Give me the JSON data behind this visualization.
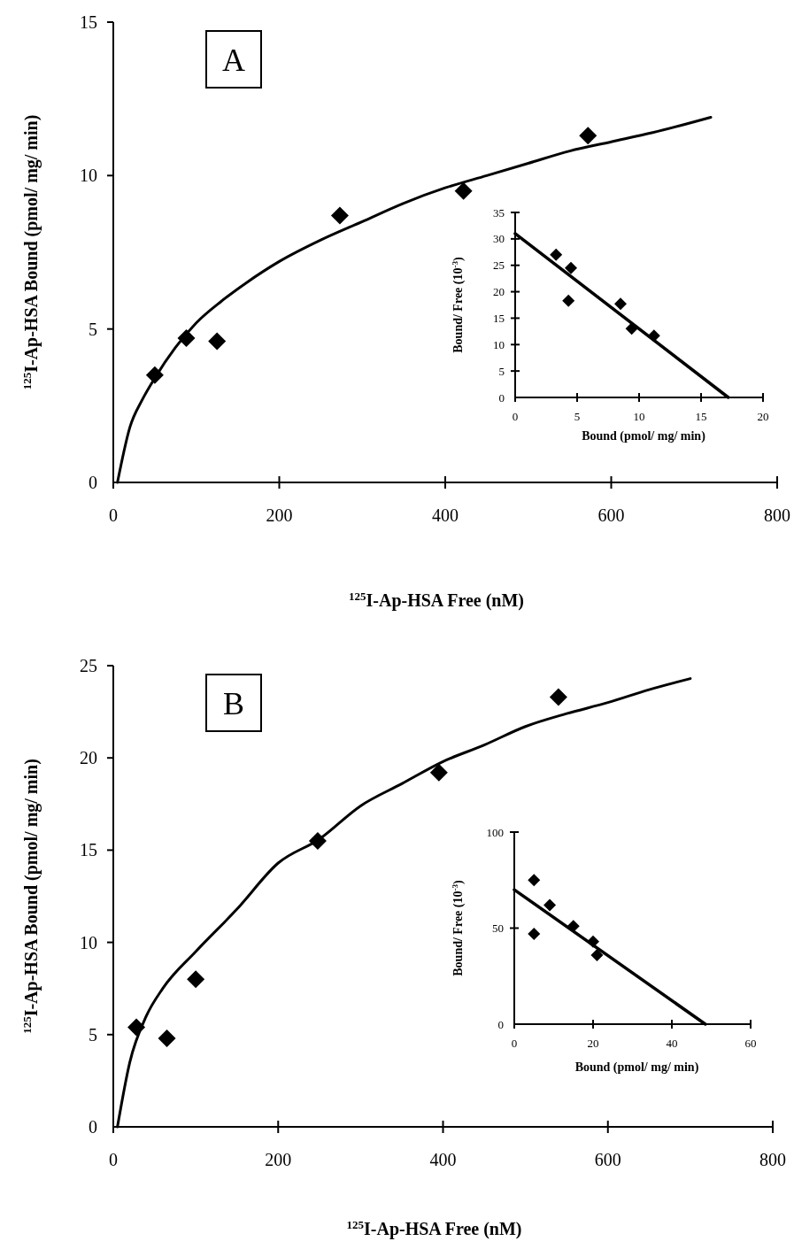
{
  "chart_data": [
    {
      "type": "scatter",
      "title": "A",
      "xlabel": "$^{125}$I-Ap-HSA Free (nM)",
      "ylabel": "$^{125}$I-Ap-HSA Bound (pmol/ mg/ min)",
      "xlim": [
        0,
        800
      ],
      "ylim": [
        0,
        15
      ],
      "xticks": [
        0,
        200,
        400,
        600,
        800
      ],
      "yticks": [
        0,
        5,
        10,
        15
      ],
      "series": [
        {
          "type": "scatter",
          "marker": "diamond",
          "color": "#000000",
          "x": [
            50,
            88,
            125,
            273,
            422,
            572
          ],
          "values": [
            3.5,
            4.7,
            4.6,
            8.7,
            9.5,
            11.3
          ]
        },
        {
          "type": "line",
          "marker": "none",
          "color": "#000000",
          "x": [
            5,
            20,
            35,
            50,
            75,
            100,
            130,
            160,
            200,
            250,
            300,
            350,
            400,
            450,
            500,
            550,
            600,
            650,
            720
          ],
          "values": [
            0,
            1.8,
            2.7,
            3.4,
            4.4,
            5.2,
            5.9,
            6.5,
            7.2,
            7.9,
            8.5,
            9.1,
            9.6,
            10.0,
            10.4,
            10.8,
            11.1,
            11.4,
            11.9
          ]
        }
      ]
    },
    {
      "type": "scatter",
      "xlabel": "Bound (pmol/ mg/ min)",
      "ylabel": "Bound/ Free (10$^{-3}$)",
      "xlim": [
        0,
        20
      ],
      "ylim": [
        0,
        35
      ],
      "xticks": [
        0,
        5,
        10,
        15,
        20
      ],
      "yticks": [
        0,
        5,
        10,
        15,
        20,
        25,
        30,
        35
      ],
      "series": [
        {
          "type": "scatter",
          "marker": "diamond",
          "color": "#000000",
          "x": [
            3.3,
            4.5,
            4.3,
            8.5,
            9.4,
            11.2
          ],
          "values": [
            27,
            24.5,
            18.3,
            17.7,
            13,
            11.7
          ]
        },
        {
          "type": "line",
          "marker": "none",
          "color": "#000000",
          "x": [
            0,
            17.2
          ],
          "values": [
            31,
            0
          ]
        }
      ]
    },
    {
      "type": "scatter",
      "title": "B",
      "xlabel": "$^{125}$I-Ap-HSA Free (nM)",
      "ylabel": "$^{125}$I-Ap-HSA Bound (pmol/ mg/ min)",
      "xlim": [
        0,
        800
      ],
      "ylim": [
        0,
        25
      ],
      "xticks": [
        0,
        200,
        400,
        600,
        800
      ],
      "yticks": [
        0,
        5,
        10,
        15,
        20,
        25
      ],
      "series": [
        {
          "type": "scatter",
          "marker": "diamond",
          "color": "#000000",
          "x": [
            28,
            65,
            100,
            248,
            395,
            540
          ],
          "values": [
            5.4,
            4.8,
            8.0,
            15.5,
            19.2,
            23.3
          ]
        },
        {
          "type": "line",
          "marker": "none",
          "color": "#000000",
          "x": [
            5,
            20,
            40,
            60,
            100,
            150,
            200,
            250,
            300,
            350,
            400,
            450,
            500,
            550,
            600,
            650,
            700
          ],
          "values": [
            0,
            3.5,
            6.0,
            7.5,
            9.5,
            11.8,
            14.3,
            15.6,
            17.4,
            18.6,
            19.8,
            20.7,
            21.7,
            22.4,
            23.0,
            23.7,
            24.3
          ]
        }
      ]
    },
    {
      "type": "scatter",
      "xlabel": "Bound (pmol/ mg/ min)",
      "ylabel": "Bound/ Free (10$^{-3}$)",
      "xlim": [
        0,
        60
      ],
      "ylim": [
        0,
        100
      ],
      "xticks": [
        0,
        20,
        40,
        60
      ],
      "yticks": [
        0,
        50,
        100
      ],
      "series": [
        {
          "type": "scatter",
          "marker": "diamond",
          "color": "#000000",
          "x": [
            5,
            5,
            9,
            15,
            20,
            21
          ],
          "values": [
            75,
            47,
            62,
            51,
            43,
            36
          ]
        },
        {
          "type": "line",
          "marker": "none",
          "color": "#000000",
          "x": [
            0,
            48.5
          ],
          "values": [
            70,
            0
          ]
        }
      ]
    }
  ]
}
